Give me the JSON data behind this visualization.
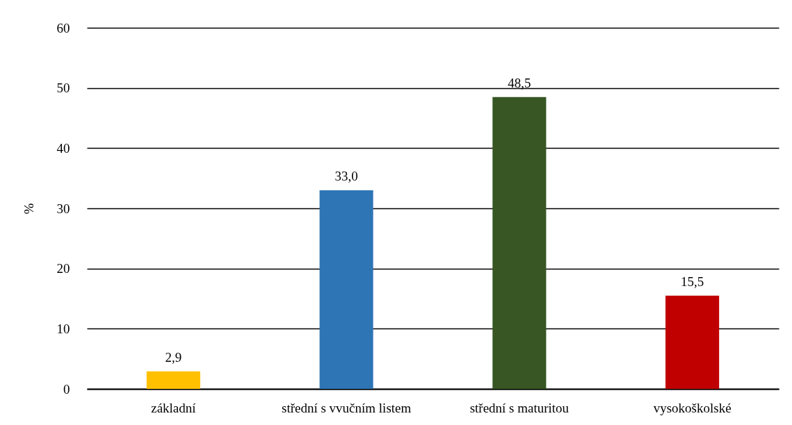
{
  "chart_data": {
    "type": "bar",
    "categories": [
      "základní",
      "střední s  vvučním listem",
      "střední s maturitou",
      "vysokoškolské"
    ],
    "values": [
      2.9,
      33.0,
      48.5,
      15.5
    ],
    "colors": [
      "#ffc000",
      "#2e75b6",
      "#375623",
      "#c00000"
    ],
    "value_labels": [
      "2,9",
      "33,0",
      "48,5",
      "15,5"
    ],
    "ylabel": "%",
    "ylim": [
      0,
      60
    ],
    "yticks": [
      0,
      10,
      20,
      30,
      40,
      50,
      60
    ],
    "grid": "y",
    "legend": false
  }
}
